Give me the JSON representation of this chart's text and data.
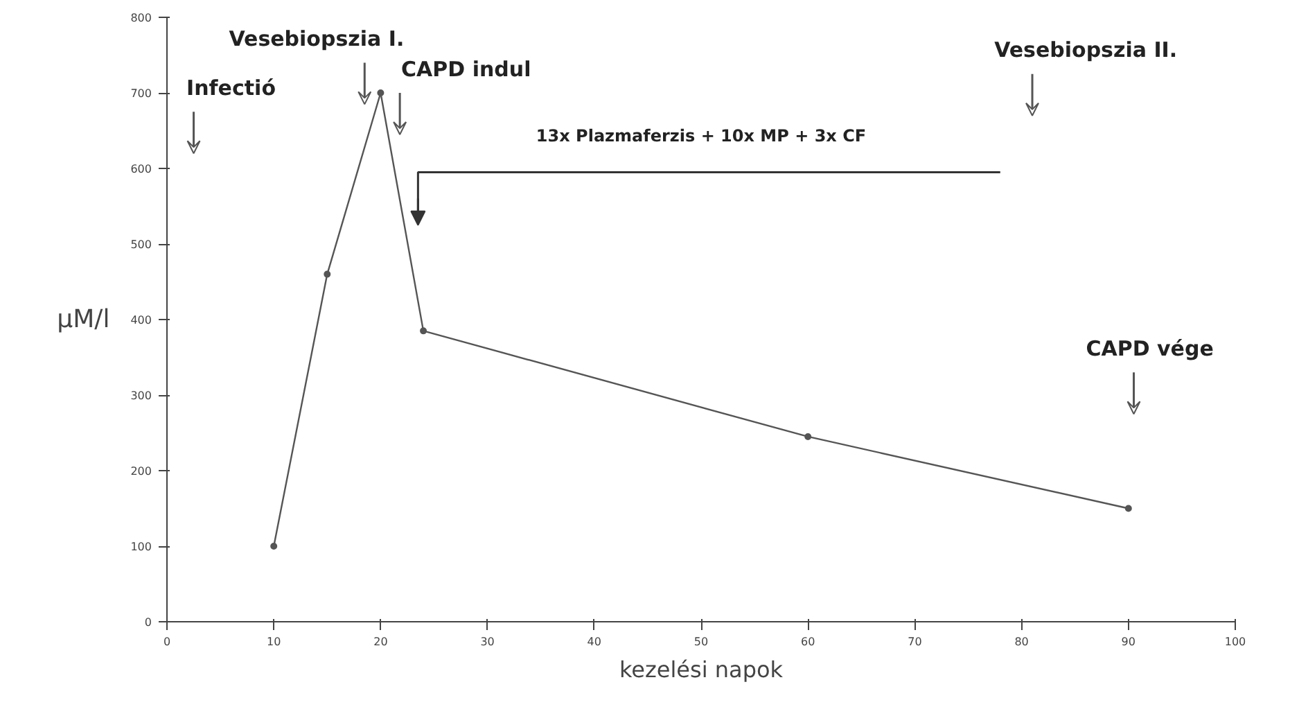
{
  "chart_data": {
    "type": "line",
    "xlabel": "kezelési napok",
    "ylabel": "μM/l",
    "x": [
      10,
      15,
      20,
      24,
      60,
      90
    ],
    "series": [
      {
        "color": "#555555",
        "values": [
          100,
          460,
          700,
          385,
          245,
          150
        ]
      }
    ],
    "xlim": [
      0,
      100
    ],
    "xticks": [
      0,
      10,
      20,
      30,
      40,
      50,
      60,
      70,
      80,
      90,
      100
    ],
    "ylim": [
      0,
      800
    ],
    "yticks": [
      0,
      100,
      200,
      300,
      400,
      500,
      600,
      700,
      800
    ],
    "grid": false,
    "marker": "circle",
    "line_style": "solid",
    "annotations": [
      "Infectió",
      "Vesebiopszia I.",
      "CAPD indul",
      "13x Plazmaferzis + 10x MP + 3x CF",
      "Vesebiopszia II.",
      "CAPD vége"
    ]
  }
}
